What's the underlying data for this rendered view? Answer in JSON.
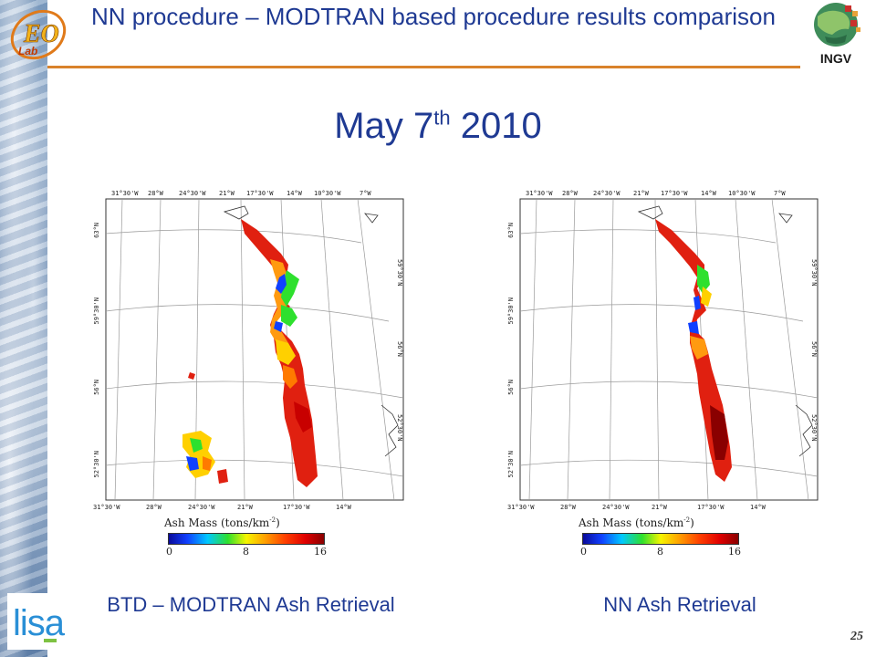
{
  "slide": {
    "title": "NN procedure – MODTRAN based procedure results comparison",
    "date_main": "May 7",
    "date_sup": "th",
    "date_year": " 2010",
    "logo_right_text": "INGV",
    "page_number": "25"
  },
  "maps": {
    "top_longitudes": [
      "31°30'W",
      "28°W",
      "24°30'W",
      "21°W",
      "17°30'W",
      "14°W",
      "10°30'W",
      "7°W"
    ],
    "left_latitudes": [
      "63°N",
      "59°30'N",
      "56°N",
      "52°30'N"
    ],
    "right_latitudes": [
      "59°30'N",
      "56°N",
      "52°30'N"
    ],
    "bottom_longitudes": [
      "31°30'W",
      "28°W",
      "24°30'W",
      "21°W",
      "17°30'W",
      "14°W"
    ]
  },
  "colorbar": {
    "title": "Ash Mass (tons/km",
    "title_sup": "-2",
    "title_end": ")",
    "ticks": [
      "0",
      "8",
      "16"
    ]
  },
  "captions": {
    "left": "BTD – MODTRAN Ash Retrieval",
    "right": "NN Ash Retrieval"
  }
}
